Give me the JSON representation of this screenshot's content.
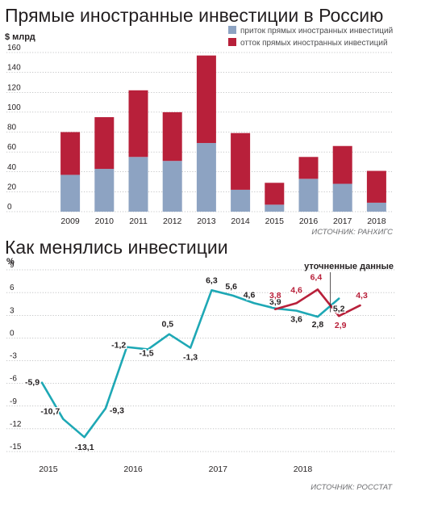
{
  "chart_data": [
    {
      "type": "bar",
      "title": "Прямые иностранные инвестиции в Россию",
      "ylabel": "$ млрд",
      "ylim": [
        0,
        160
      ],
      "yticks": [
        0,
        20,
        40,
        60,
        80,
        100,
        120,
        140,
        160
      ],
      "grid": true,
      "stacked": true,
      "legend_position": "top-right",
      "categories": [
        "2009",
        "2010",
        "2011",
        "2012",
        "2013",
        "2014",
        "2015",
        "2016",
        "2017",
        "2018"
      ],
      "series": [
        {
          "name": "приток прямых иностранных инвестиций",
          "color": "#8da3c2",
          "values": [
            37,
            43,
            55,
            51,
            69,
            22,
            7,
            33,
            28,
            9
          ]
        },
        {
          "name": "отток прямых иностранных инвестиций",
          "color": "#b8203a",
          "values": [
            43,
            52,
            67,
            49,
            88,
            57,
            22,
            22,
            38,
            32
          ]
        }
      ],
      "source": "ИСТОЧНИК: РАНХИГС"
    },
    {
      "type": "line",
      "title": "Как менялись инвестиции",
      "ylabel": "%",
      "ylim": [
        -15,
        9
      ],
      "yticks": [
        9,
        6,
        3,
        0,
        -3,
        -6,
        -9,
        -12,
        -15
      ],
      "x_ticks": [
        "2015",
        "2016",
        "2017",
        "2018"
      ],
      "grid": true,
      "series": [
        {
          "color": "#1ea8b5",
          "values": [
            -5.9,
            -10.7,
            -13.1,
            -9.3,
            -1.2,
            -1.5,
            0.5,
            -1.3,
            6.3,
            5.6,
            4.6,
            3.9,
            3.6,
            2.8,
            5.2
          ],
          "labels": [
            "-5,9",
            "-10,7",
            "-13,1",
            "-9,3",
            "-1,2",
            "-1,5",
            "0,5",
            "-1,3",
            "6,3",
            "5,6",
            "4,6",
            "3,9",
            "3,6",
            "2,8",
            "5,2"
          ]
        },
        {
          "name": "уточненные данные",
          "color": "#b8203a",
          "values": [
            3.8,
            4.6,
            6.4,
            2.9,
            4.3
          ],
          "labels": [
            "3,8",
            "4,6",
            "6,4",
            "2,9",
            "4,3"
          ]
        }
      ],
      "annotation": "уточненные данные",
      "source": "ИСТОЧНИК: РОССТАТ"
    }
  ]
}
